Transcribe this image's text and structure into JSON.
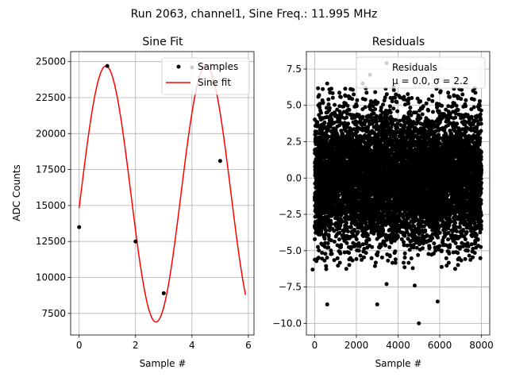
{
  "figure": {
    "suptitle": "Run 2063, channel1, Sine Freq.: 11.995 MHz"
  },
  "chart_data": [
    {
      "type": "line",
      "title": "Sine Fit",
      "xlabel": "Sample #",
      "ylabel": "ADC Counts",
      "xlim": [
        -0.3,
        6.2
      ],
      "ylim": [
        6000,
        25700
      ],
      "xticks": [
        0,
        2,
        4,
        6
      ],
      "xtick_labels": [
        "0",
        "2",
        "4",
        "6"
      ],
      "yticks": [
        7500,
        10000,
        12500,
        15000,
        17500,
        20000,
        22500,
        25000
      ],
      "ytick_labels": [
        "7500",
        "10000",
        "12500",
        "15000",
        "17500",
        "20000",
        "22500",
        "25000"
      ],
      "grid": true,
      "legend_position": "top-right",
      "series": [
        {
          "name": "Samples",
          "style": "markers",
          "color": "#000000",
          "x": [
            0,
            1,
            2,
            3,
            4,
            5
          ],
          "y": [
            13500,
            24700,
            12500,
            8900,
            24600,
            18100
          ]
        },
        {
          "name": "Sine fit",
          "style": "line",
          "color": "#ff0000",
          "function": "sine",
          "offset": 15800,
          "amplitude": 8900,
          "period": 3.55,
          "peak_at": 0.95,
          "x_range": [
            0,
            5.9
          ]
        }
      ]
    },
    {
      "type": "scatter",
      "title": "Residuals",
      "xlabel": "Sample #",
      "ylabel": "",
      "xlim": [
        -400,
        8400
      ],
      "ylim": [
        -10.8,
        8.7
      ],
      "xticks": [
        0,
        2000,
        4000,
        6000,
        8000
      ],
      "xtick_labels": [
        "0",
        "2000",
        "4000",
        "6000",
        "8000"
      ],
      "yticks": [
        -10.0,
        -7.5,
        -5.0,
        -2.5,
        0.0,
        2.5,
        5.0,
        7.5
      ],
      "ytick_labels": [
        "−10.0",
        "−7.5",
        "−5.0",
        "−2.5",
        "0.0",
        "2.5",
        "5.0",
        "7.5"
      ],
      "grid": true,
      "legend_position": "top-right",
      "series": [
        {
          "name": "Residuals",
          "style": "markers",
          "color": "#000000",
          "n_points": 8000,
          "mean": 0.0,
          "sigma": 2.2,
          "notable_outliers": [
            {
              "x": 5000,
              "y": -10.0
            },
            {
              "x": 600,
              "y": -8.7
            },
            {
              "x": 3000,
              "y": -8.7
            },
            {
              "x": 5900,
              "y": -8.5
            },
            {
              "x": 4800,
              "y": -7.4
            },
            {
              "x": 3450,
              "y": -7.3
            },
            {
              "x": 3450,
              "y": 7.9
            },
            {
              "x": 2650,
              "y": 7.1
            },
            {
              "x": 2300,
              "y": 6.5
            },
            {
              "x": 600,
              "y": 6.5
            },
            {
              "x": 7600,
              "y": 6.0
            },
            {
              "x": -100,
              "y": -6.3
            }
          ]
        }
      ],
      "legend_lines": [
        "Residuals",
        "μ = 0.0, σ = 2.2"
      ]
    }
  ]
}
